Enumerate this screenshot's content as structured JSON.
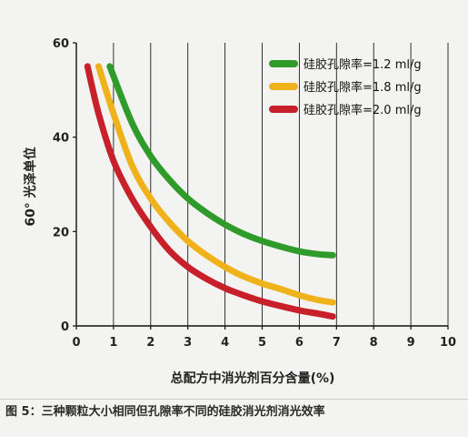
{
  "chart_data": {
    "type": "line",
    "xlabel": "总配方中消光剂百分含量(%)",
    "ylabel": "60° 光泽单位",
    "xlim": [
      0,
      10
    ],
    "ylim": [
      0,
      60
    ],
    "x_ticks": [
      "0",
      "1",
      "2",
      "3",
      "4",
      "5",
      "6",
      "7",
      "8",
      "9",
      "10"
    ],
    "y_ticks": [
      "0",
      "20",
      "40",
      "60"
    ],
    "grid": "vertical",
    "legend_position": "top-right",
    "series": [
      {
        "name": "硅胶孔隙率=1.2 ml/g",
        "color": "#2e9b2a",
        "points": [
          [
            0.9,
            55
          ],
          [
            1.5,
            43
          ],
          [
            2,
            36
          ],
          [
            2.5,
            31
          ],
          [
            3,
            27
          ],
          [
            3.5,
            24
          ],
          [
            4,
            21.5
          ],
          [
            4.5,
            19.5
          ],
          [
            5,
            18
          ],
          [
            5.5,
            16.8
          ],
          [
            6,
            15.8
          ],
          [
            6.5,
            15.2
          ],
          [
            6.9,
            15
          ]
        ]
      },
      {
        "name": "硅胶孔隙率=1.8 ml/g",
        "color": "#f0b21a",
        "points": [
          [
            0.6,
            55
          ],
          [
            1,
            45
          ],
          [
            1.5,
            34
          ],
          [
            2,
            27
          ],
          [
            2.5,
            22
          ],
          [
            3,
            18
          ],
          [
            3.5,
            15
          ],
          [
            4,
            12.5
          ],
          [
            4.5,
            10.5
          ],
          [
            5,
            9
          ],
          [
            5.5,
            7.8
          ],
          [
            6,
            6.5
          ],
          [
            6.5,
            5.5
          ],
          [
            6.9,
            5
          ]
        ]
      },
      {
        "name": "硅胶孔隙率=2.0 ml/g",
        "color": "#c8202a",
        "points": [
          [
            0.3,
            55
          ],
          [
            0.6,
            45
          ],
          [
            1,
            35
          ],
          [
            1.5,
            27
          ],
          [
            2,
            21
          ],
          [
            2.5,
            16
          ],
          [
            3,
            12.5
          ],
          [
            3.5,
            10
          ],
          [
            4,
            8
          ],
          [
            4.5,
            6.5
          ],
          [
            5,
            5.2
          ],
          [
            5.5,
            4.2
          ],
          [
            6,
            3.3
          ],
          [
            6.5,
            2.6
          ],
          [
            6.9,
            2
          ]
        ]
      }
    ]
  },
  "caption": "图 5：三种颗粒大小相同但孔隙率不同的硅胶消光剂消光效率"
}
